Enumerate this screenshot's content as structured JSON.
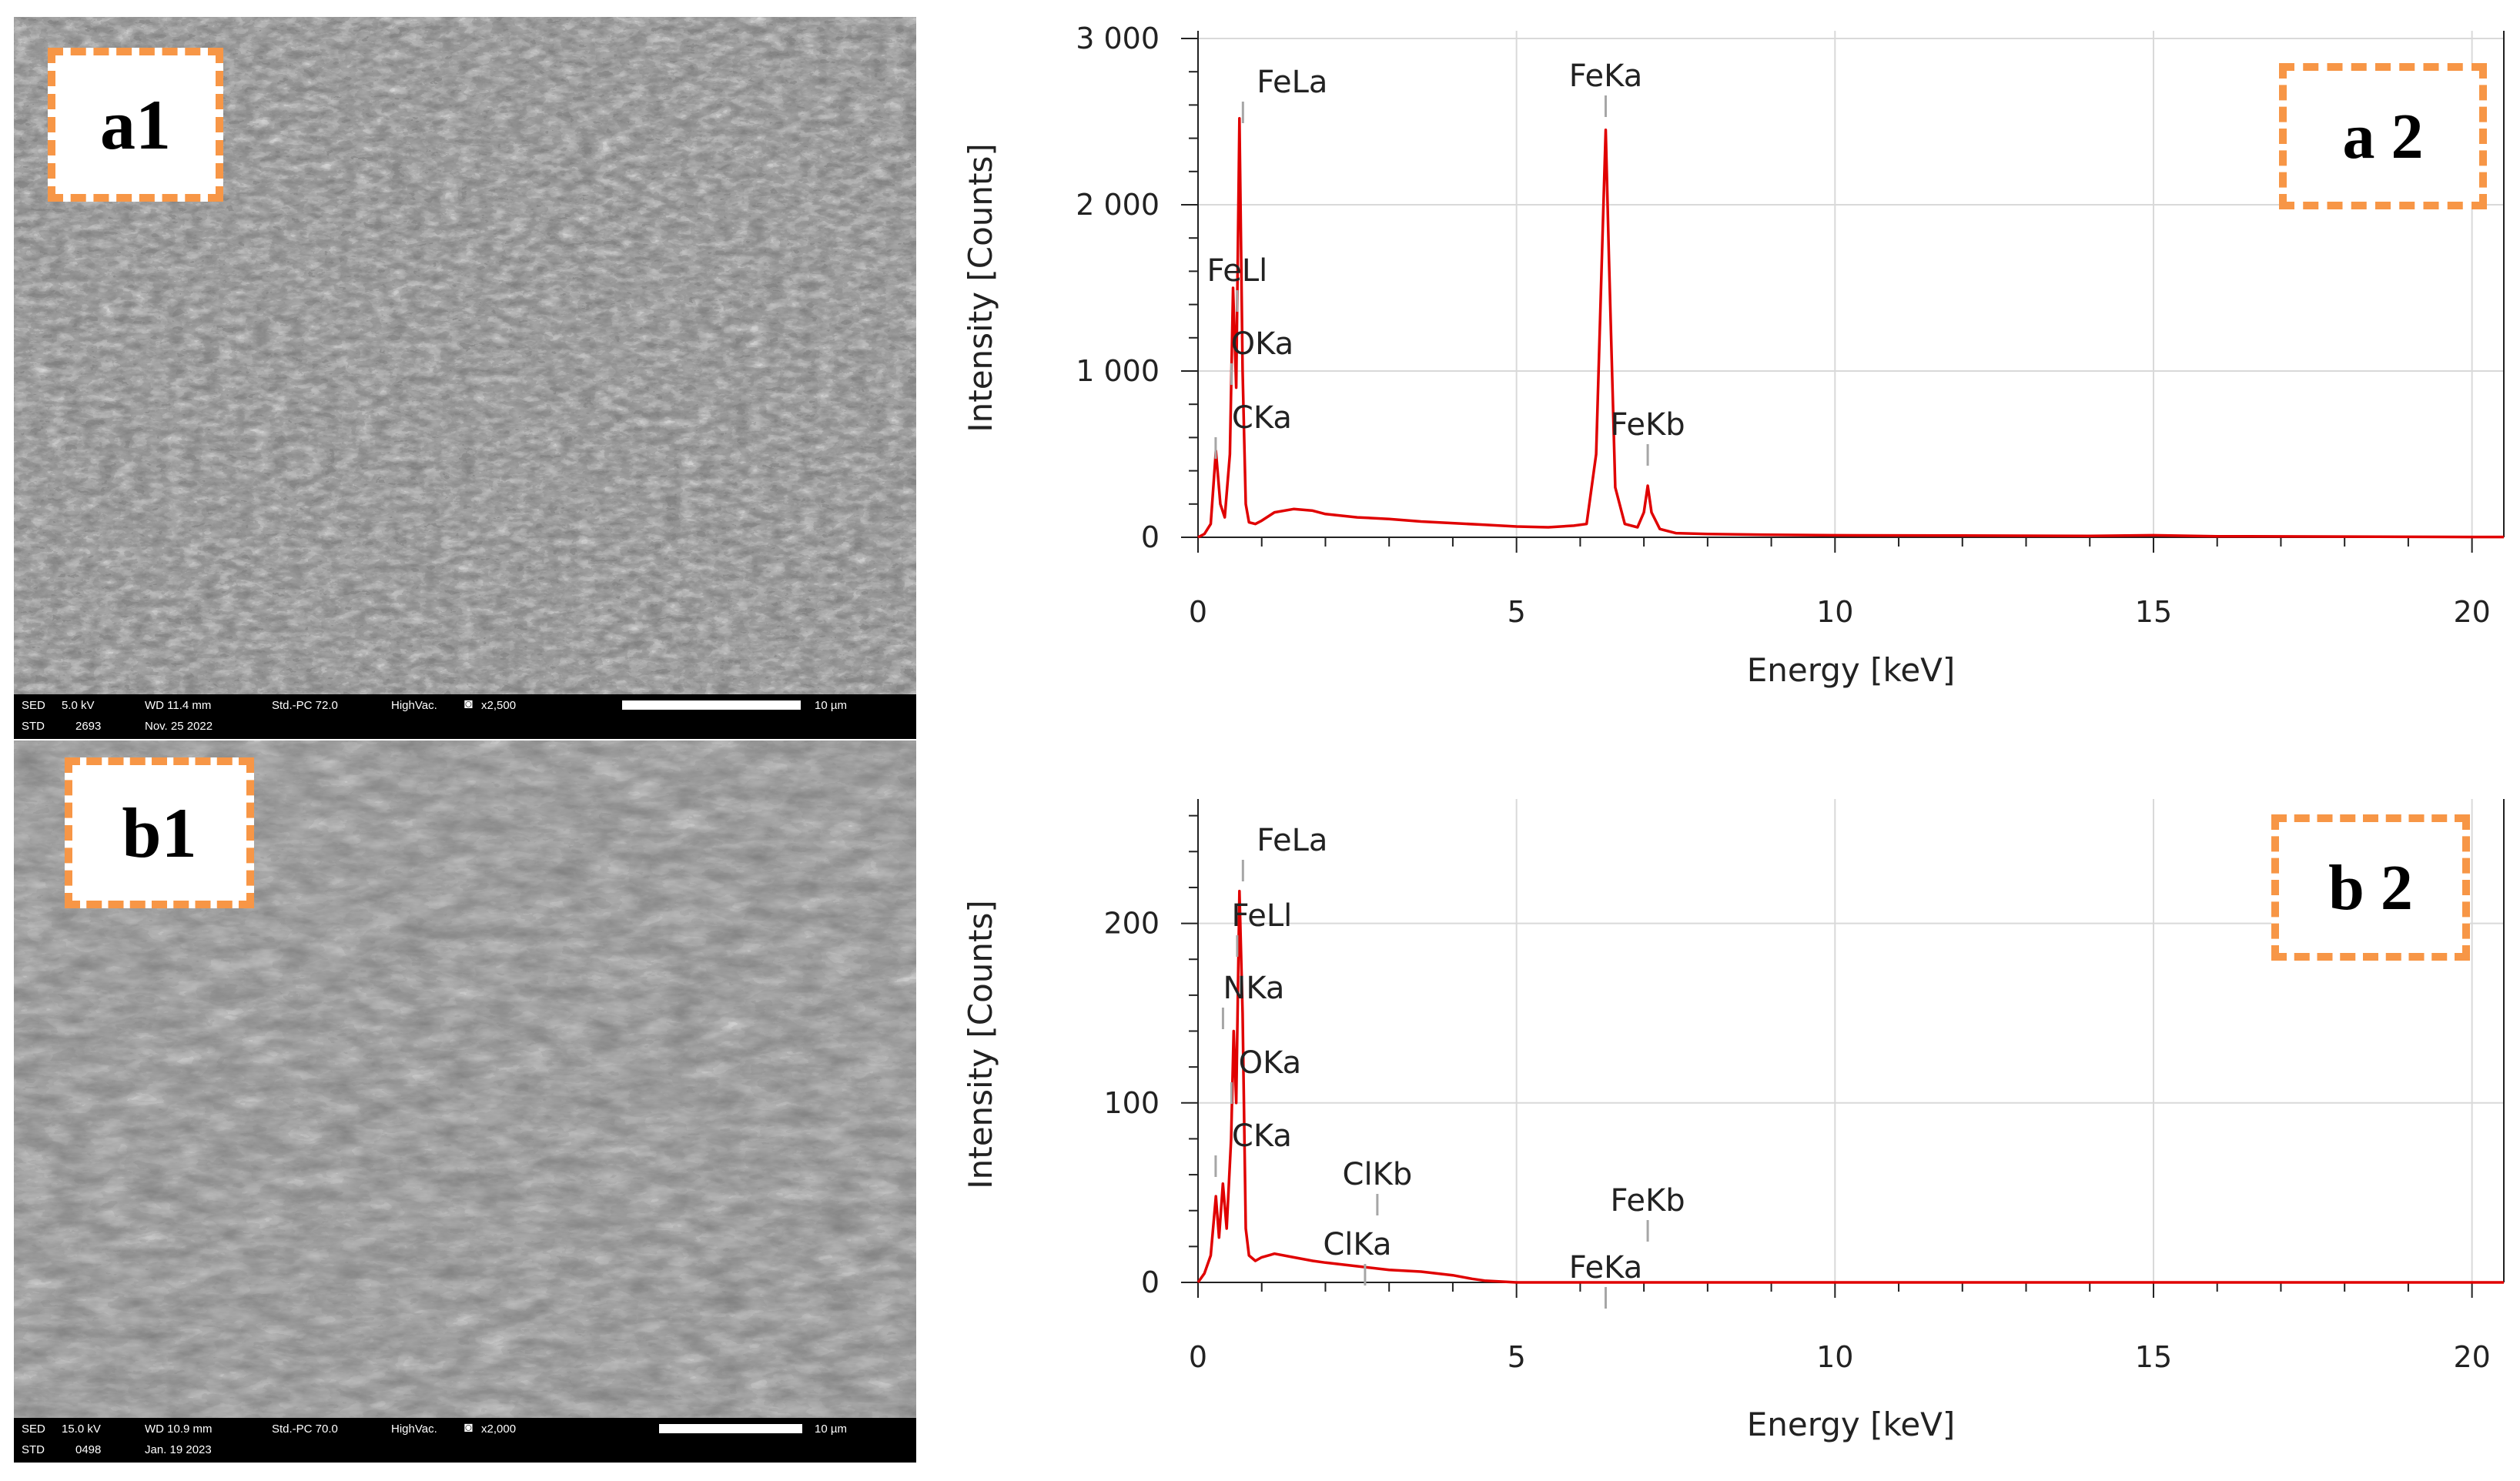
{
  "panels": {
    "a1": {
      "label": "a1"
    },
    "b1": {
      "label": "b1"
    },
    "a2": {
      "label": "a 2"
    },
    "b2": {
      "label": "b 2"
    }
  },
  "sem_a": {
    "line1": [
      "SED",
      "5.0 kV",
      "WD 11.4 mm",
      "Std.-PC 72.0",
      "HighVac.",
      "x2,500",
      "10 µm"
    ],
    "line2": [
      "STD",
      "2693",
      "Nov. 25 2022"
    ]
  },
  "sem_b": {
    "line1": [
      "SED",
      "15.0 kV",
      "WD 10.9 mm",
      "Std.-PC 70.0",
      "HighVac.",
      "x2,000",
      "10 µm"
    ],
    "line2": [
      "STD",
      "0498",
      "Jan. 19 2023"
    ]
  },
  "chart_data": [
    {
      "type": "line",
      "xlabel": "Energy [keV]",
      "ylabel": "Intensity [Counts]",
      "xlim": [
        0,
        20.5
      ],
      "ylim": [
        0,
        3000
      ],
      "xticks": [
        0,
        5,
        10,
        15,
        20
      ],
      "yticks": [
        0,
        1000,
        2000,
        3000
      ],
      "ytick_labels": [
        "0",
        "1 000",
        "2 000",
        "3 000"
      ],
      "grid": true,
      "color": "#e00000",
      "series": [
        {
          "x": [
            0,
            0.1,
            0.2,
            0.28,
            0.35,
            0.42,
            0.5,
            0.55,
            0.6,
            0.65,
            0.7,
            0.75,
            0.8,
            0.9,
            1.0,
            1.2,
            1.5,
            1.8,
            2.0,
            2.5,
            3.0,
            3.5,
            4.0,
            4.5,
            5.0,
            5.5,
            5.9,
            6.1,
            6.25,
            6.35,
            6.4,
            6.45,
            6.55,
            6.7,
            6.9,
            7.0,
            7.06,
            7.12,
            7.25,
            7.5,
            8.0,
            9.0,
            10.0,
            12.0,
            14.0,
            15.0,
            16.0,
            17.0,
            18.0,
            19.0,
            20.0,
            20.5
          ],
          "y": [
            0,
            20,
            80,
            520,
            200,
            120,
            500,
            1500,
            900,
            2520,
            1000,
            200,
            90,
            80,
            100,
            150,
            170,
            160,
            140,
            120,
            110,
            95,
            85,
            75,
            65,
            60,
            70,
            80,
            500,
            1800,
            2450,
            1700,
            300,
            80,
            60,
            150,
            310,
            150,
            50,
            25,
            20,
            15,
            12,
            10,
            8,
            12,
            6,
            5,
            4,
            3,
            2,
            2
          ]
        }
      ],
      "annotations": [
        {
          "text": "FeLa",
          "x": 0.705
        },
        {
          "text": "FeLl",
          "x": 0.615
        },
        {
          "text": "OKa",
          "x": 0.525
        },
        {
          "text": "CKa",
          "x": 0.277
        },
        {
          "text": "FeKa",
          "x": 6.4
        },
        {
          "text": "FeKb",
          "x": 7.06
        }
      ]
    },
    {
      "type": "line",
      "xlabel": "Energy [keV]",
      "ylabel": "Intensity [Counts]",
      "xlim": [
        0,
        20.5
      ],
      "ylim": [
        0,
        265
      ],
      "xticks": [
        0,
        5,
        10,
        15,
        20
      ],
      "yticks": [
        0,
        100,
        200
      ],
      "ytick_labels": [
        "0",
        "100",
        "200"
      ],
      "grid": true,
      "color": "#e00000",
      "series": [
        {
          "x": [
            0,
            0.1,
            0.2,
            0.28,
            0.33,
            0.39,
            0.45,
            0.52,
            0.56,
            0.6,
            0.65,
            0.7,
            0.75,
            0.8,
            0.9,
            1.0,
            1.2,
            1.5,
            1.8,
            2.0,
            2.5,
            3.0,
            3.5,
            4.0,
            4.3,
            4.5,
            5.0,
            7.0,
            10.0,
            15.0,
            20.0,
            20.5
          ],
          "y": [
            0,
            5,
            15,
            48,
            25,
            55,
            30,
            80,
            140,
            100,
            218,
            150,
            30,
            15,
            12,
            14,
            16,
            14,
            12,
            11,
            9,
            7,
            6,
            4,
            2,
            1,
            0,
            0,
            0,
            0,
            0,
            0
          ]
        }
      ],
      "annotations": [
        {
          "text": "FeLa",
          "x": 0.705
        },
        {
          "text": "FeLl",
          "x": 0.615
        },
        {
          "text": "NKa",
          "x": 0.392
        },
        {
          "text": "OKa",
          "x": 0.525
        },
        {
          "text": "CKa",
          "x": 0.277
        },
        {
          "text": "ClKb",
          "x": 2.815
        },
        {
          "text": "ClKa",
          "x": 2.622
        },
        {
          "text": "FeKa",
          "x": 6.4
        },
        {
          "text": "FeKb",
          "x": 7.06
        }
      ]
    }
  ]
}
